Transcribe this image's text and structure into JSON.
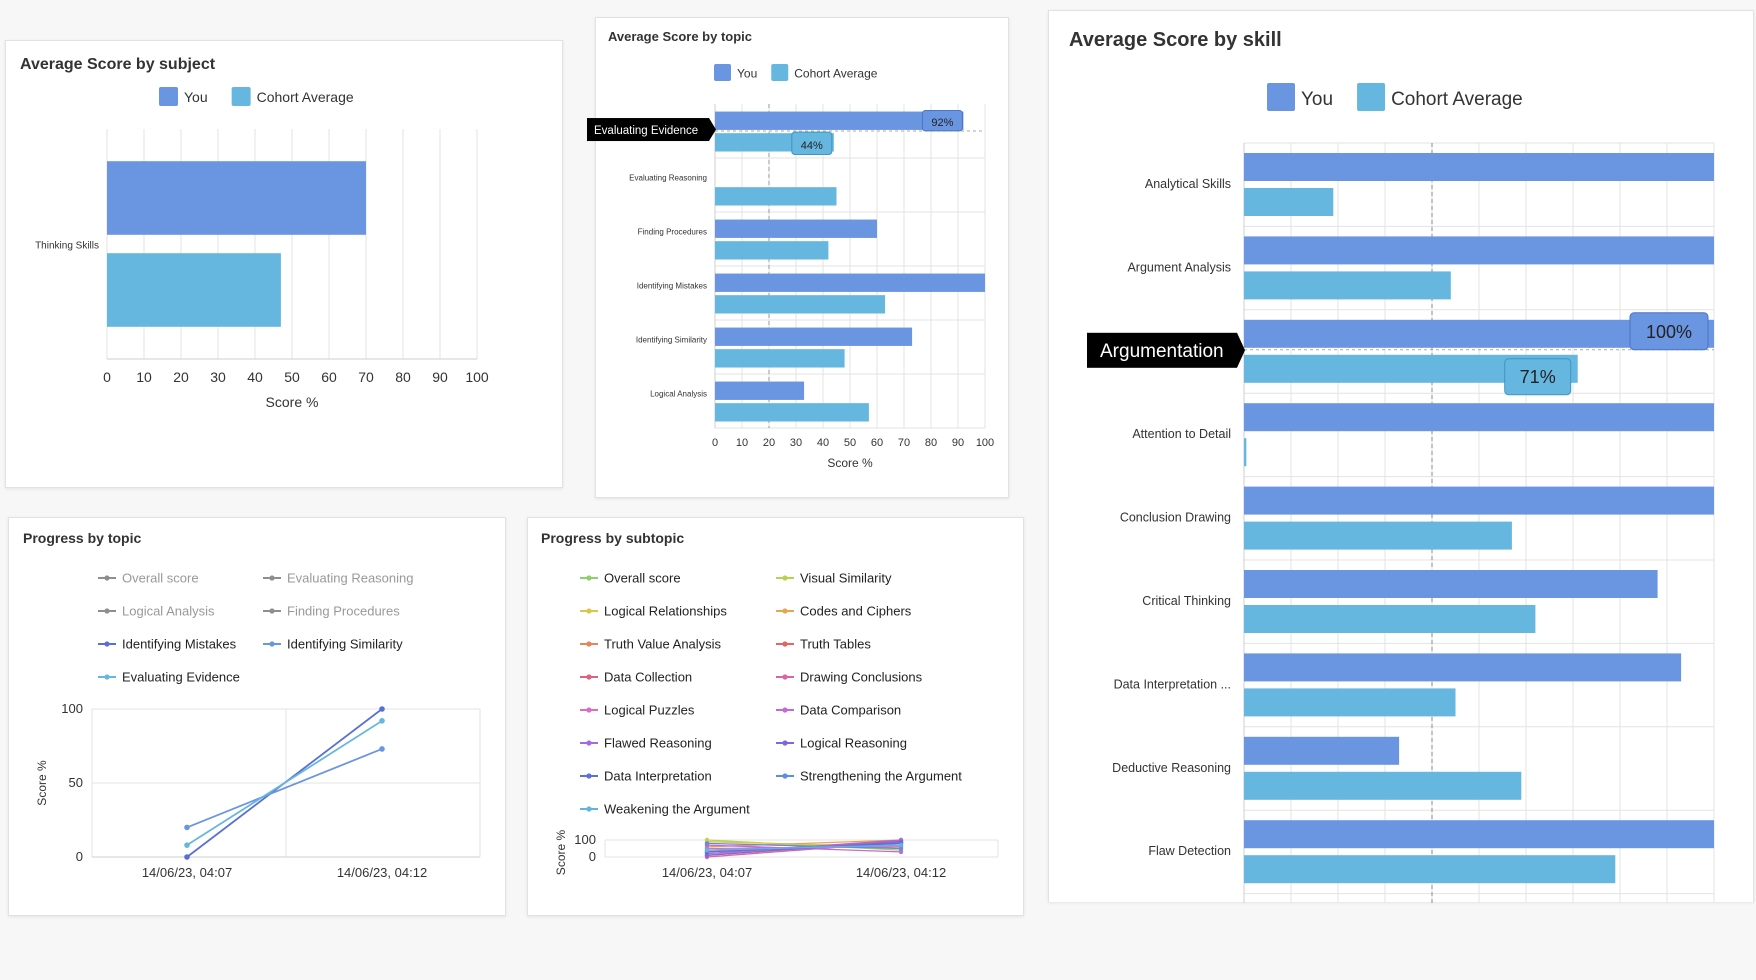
{
  "colors": {
    "you": "#6a95e1",
    "cohort": "#66b7df",
    "grid": "#e3e3e3",
    "axis": "#cfcfcf",
    "muted": "#8e8e8e",
    "callout": "#000000"
  },
  "legend": {
    "you": "You",
    "cohort": "Cohort Average"
  },
  "subject_chart": {
    "title": "Average Score by subject",
    "xlabel": "Score %",
    "chart_data": {
      "type": "bar",
      "categories": [
        "Thinking Skills"
      ],
      "series": [
        {
          "name": "You",
          "values": [
            70
          ]
        },
        {
          "name": "Cohort Average",
          "values": [
            47
          ]
        }
      ],
      "xlim": [
        0,
        100
      ],
      "ticks": [
        "0",
        "10",
        "20",
        "30",
        "40",
        "50",
        "60",
        "70",
        "80",
        "90",
        "100"
      ],
      "grid": true,
      "legend": "top"
    }
  },
  "topic_chart": {
    "title": "Average Score by topic",
    "xlabel": "Score %",
    "tooltip": {
      "category": "Evaluating Evidence",
      "you": "92%",
      "cohort": "44%"
    },
    "chart_data": {
      "type": "bar",
      "categories": [
        "Evaluating Evidence",
        "Evaluating Reasoning",
        "Finding Procedures",
        "Identifying Mistakes",
        "Identifying Similarity",
        "Logical Analysis"
      ],
      "series": [
        {
          "name": "You",
          "values": [
            92,
            0,
            60,
            100,
            73,
            33
          ]
        },
        {
          "name": "Cohort Average",
          "values": [
            44,
            45,
            42,
            63,
            48,
            57
          ]
        }
      ],
      "xlim": [
        0,
        100
      ],
      "ticks": [
        "0",
        "10",
        "20",
        "30",
        "40",
        "50",
        "60",
        "70",
        "80",
        "90",
        "100"
      ],
      "reference_line": 20,
      "grid": true,
      "legend": "top"
    }
  },
  "skill_chart": {
    "title": "Average Score by skill",
    "tooltip": {
      "category": "Argumentation",
      "you": "100%",
      "cohort": "71%"
    },
    "chart_data": {
      "type": "bar",
      "categories": [
        "Analytical Skills",
        "Argument Analysis",
        "Argumentation",
        "Attention to Detail",
        "Conclusion Drawing",
        "Critical Thinking",
        "Data Interpretation ...",
        "Deductive Reasoning",
        "Flaw Detection"
      ],
      "series": [
        {
          "name": "You",
          "values": [
            100,
            100,
            100,
            100,
            100,
            88,
            93,
            33,
            100
          ]
        },
        {
          "name": "Cohort Average",
          "values": [
            19,
            44,
            71,
            0.5,
            57,
            62,
            45,
            59,
            79
          ]
        }
      ],
      "xlim": [
        0,
        100
      ],
      "reference_line": 40,
      "grid": true,
      "legend": "top"
    }
  },
  "progress_topic": {
    "title": "Progress by topic",
    "ylabel": "Score %",
    "legend_items": [
      {
        "name": "Overall score",
        "color": "#8e8e8e",
        "active": false
      },
      {
        "name": "Evaluating Reasoning",
        "color": "#8e8e8e",
        "active": false
      },
      {
        "name": "Logical Analysis",
        "color": "#8e8e8e",
        "active": false
      },
      {
        "name": "Finding Procedures",
        "color": "#8e8e8e",
        "active": false
      },
      {
        "name": "Identifying Mistakes",
        "color": "#5a6fd6",
        "active": true
      },
      {
        "name": "Identifying Similarity",
        "color": "#6a95e1",
        "active": true
      },
      {
        "name": "Evaluating Evidence",
        "color": "#66b7df",
        "active": true
      }
    ],
    "chart_data": {
      "type": "line",
      "x": [
        "14/06/23, 04:07",
        "14/06/23, 04:12"
      ],
      "series": [
        {
          "name": "Identifying Mistakes",
          "values": [
            0,
            100
          ],
          "color": "#5a6fd6"
        },
        {
          "name": "Identifying Similarity",
          "values": [
            20,
            73
          ],
          "color": "#6a95e1"
        },
        {
          "name": "Evaluating Evidence",
          "values": [
            8,
            92
          ],
          "color": "#66b7df"
        }
      ],
      "ylim": [
        0,
        100
      ],
      "yticks": [
        "0",
        "50",
        "100"
      ],
      "grid": true,
      "legend": "top"
    }
  },
  "progress_subtopic": {
    "title": "Progress by subtopic",
    "ylabel": "Score %",
    "legend_items": [
      {
        "name": "Overall score",
        "color": "#8ed16b"
      },
      {
        "name": "Visual Similarity",
        "color": "#b5d44c"
      },
      {
        "name": "Logical Relationships",
        "color": "#dcc64a"
      },
      {
        "name": "Codes and Ciphers",
        "color": "#e6a64f"
      },
      {
        "name": "Truth Value Analysis",
        "color": "#e5845e"
      },
      {
        "name": "Truth Tables",
        "color": "#e06565"
      },
      {
        "name": "Data Collection",
        "color": "#e0607f"
      },
      {
        "name": "Drawing Conclusions",
        "color": "#dc64a3"
      },
      {
        "name": "Logical Puzzles",
        "color": "#d66fcb"
      },
      {
        "name": "Data Comparison",
        "color": "#c36ad9"
      },
      {
        "name": "Flawed Reasoning",
        "color": "#a66be0"
      },
      {
        "name": "Logical Reasoning",
        "color": "#8166dc"
      },
      {
        "name": "Data Interpretation",
        "color": "#5f6edd"
      },
      {
        "name": "Strengthening the Argument",
        "color": "#5c8fe0"
      },
      {
        "name": "Weakening the Argument",
        "color": "#62b4e0"
      }
    ],
    "chart_data": {
      "type": "line",
      "x": [
        "14/06/23, 04:07",
        "14/06/23, 04:12"
      ],
      "series": [
        {
          "name": "Overall score",
          "values": [
            20,
            80
          ]
        },
        {
          "name": "Visual Similarity",
          "values": [
            100,
            40
          ]
        },
        {
          "name": "Logical Relationships",
          "values": [
            90,
            60
          ]
        },
        {
          "name": "Codes and Ciphers",
          "values": [
            60,
            100
          ]
        },
        {
          "name": "Truth Value Analysis",
          "values": [
            30,
            90
          ]
        },
        {
          "name": "Truth Tables",
          "values": [
            10,
            95
          ]
        },
        {
          "name": "Data Collection",
          "values": [
            40,
            70
          ]
        },
        {
          "name": "Drawing Conclusions",
          "values": [
            0,
            85
          ]
        },
        {
          "name": "Logical Puzzles",
          "values": [
            50,
            60
          ]
        },
        {
          "name": "Data Comparison",
          "values": [
            70,
            30
          ]
        },
        {
          "name": "Flawed Reasoning",
          "values": [
            20,
            100
          ]
        },
        {
          "name": "Logical Reasoning",
          "values": [
            10,
            90
          ]
        },
        {
          "name": "Data Interpretation",
          "values": [
            30,
            80
          ]
        },
        {
          "name": "Strengthening the Argument",
          "values": [
            80,
            50
          ]
        },
        {
          "name": "Weakening the Argument",
          "values": [
            40,
            70
          ]
        }
      ],
      "ylim": [
        0,
        100
      ],
      "yticks": [
        "0",
        "100"
      ],
      "grid": true,
      "legend": "top"
    }
  }
}
